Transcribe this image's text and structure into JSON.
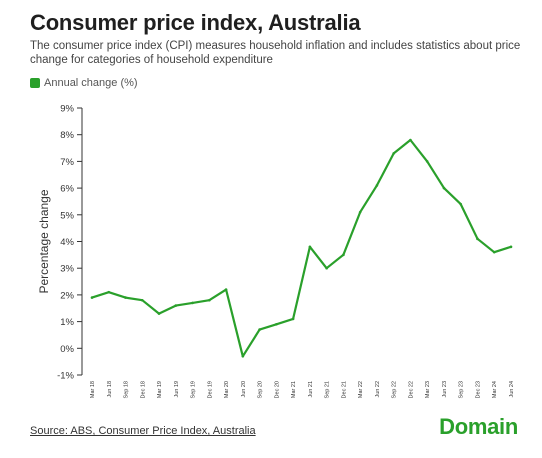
{
  "title": "Consumer price index, Australia",
  "subtitle": "The consumer price index (CPI) measures household inflation and includes statistics about price change for categories of household expenditure",
  "source": "Source: ABS, Consumer Price Index, Australia",
  "brand": "Domain",
  "colors": {
    "line": "#2aa02b",
    "brand": "#2aa02b"
  },
  "chart_data": {
    "type": "line",
    "ylabel": "Percentage change",
    "xlabel": "",
    "ylim": [
      -1,
      9
    ],
    "yticks": [
      "-1%",
      "0%",
      "1%",
      "2%",
      "3%",
      "4%",
      "5%",
      "6%",
      "7%",
      "8%",
      "9%"
    ],
    "grid": false,
    "legend": "top-left",
    "categories": [
      "Mar 18",
      "Jun 18",
      "Sep 18",
      "Dec 18",
      "Mar 19",
      "Jun 19",
      "Sep 19",
      "Dec 19",
      "Mar 20",
      "Jun 20",
      "Sep 20",
      "Dec 20",
      "Mar 21",
      "Jun 21",
      "Sep 21",
      "Dec 21",
      "Mar 22",
      "Jun 22",
      "Sep 22",
      "Dec 22",
      "Mar 23",
      "Jun 23",
      "Sep 23",
      "Dec 23",
      "Mar 24",
      "Jun 24"
    ],
    "series": [
      {
        "name": "Annual change (%)",
        "values": [
          1.9,
          2.1,
          1.9,
          1.8,
          1.3,
          1.6,
          1.7,
          1.8,
          2.2,
          -0.3,
          0.7,
          0.9,
          1.1,
          3.8,
          3.0,
          3.5,
          5.1,
          6.1,
          7.3,
          7.8,
          7.0,
          6.0,
          5.4,
          4.1,
          3.6,
          3.8
        ]
      }
    ]
  }
}
